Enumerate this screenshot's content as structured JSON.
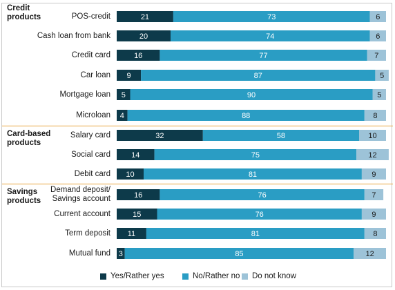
{
  "chart_data": {
    "type": "bar",
    "orientation": "horizontal",
    "stacked": true,
    "xlim": [
      0,
      100
    ],
    "grid": false,
    "legend_position": "bottom",
    "groups": [
      {
        "label": "Credit products",
        "categories": [
          "POS-credit",
          "Cash loan from bank",
          "Credit card",
          "Car loan",
          "Mortgage  loan",
          "Microloan"
        ]
      },
      {
        "label": "Card-based products",
        "categories": [
          "Salary card",
          "Social card",
          "Debit card"
        ]
      },
      {
        "label": "Savings products",
        "categories": [
          "Demand deposit/\nSavings account",
          "Current account",
          "Term deposit",
          "Mutual fund"
        ]
      }
    ],
    "series": [
      {
        "name": "Yes/Rather yes",
        "color": "#0d3a4a",
        "values": [
          21,
          20,
          16,
          9,
          5,
          4,
          32,
          14,
          10,
          16,
          15,
          11,
          3
        ]
      },
      {
        "name": "No/Rather no",
        "color": "#2a9dc4",
        "values": [
          73,
          74,
          77,
          87,
          90,
          88,
          58,
          75,
          81,
          76,
          76,
          81,
          85
        ]
      },
      {
        "name": "Do not know",
        "color": "#9dc3d8",
        "values": [
          6,
          6,
          7,
          5,
          5,
          8,
          10,
          12,
          9,
          7,
          9,
          8,
          12
        ]
      }
    ]
  }
}
